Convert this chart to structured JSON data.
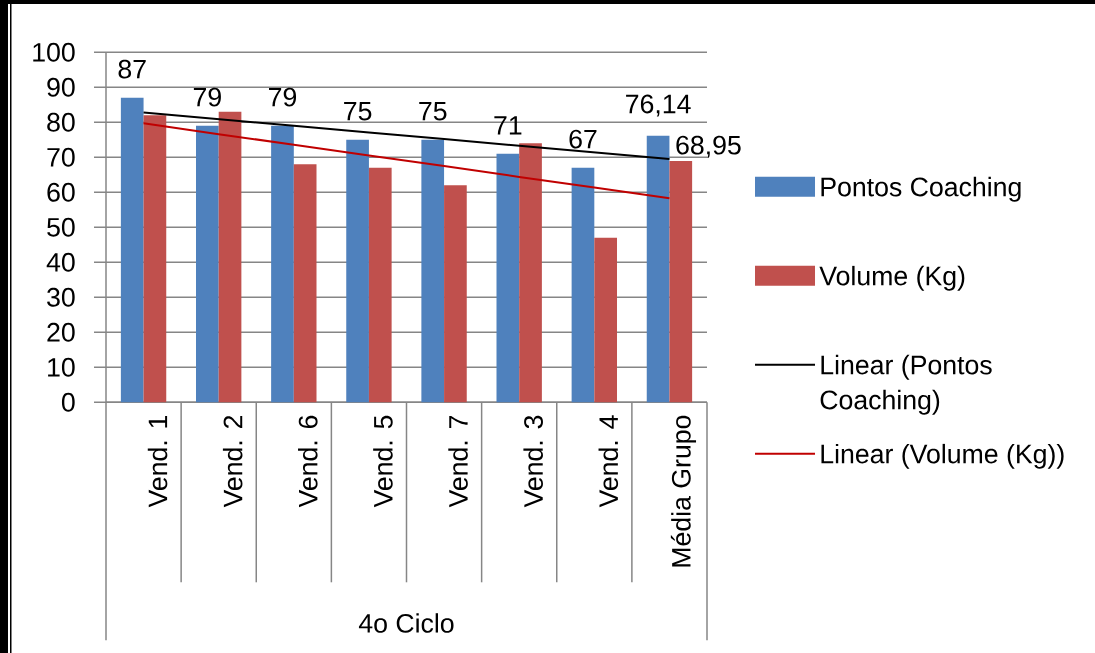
{
  "chart_data": {
    "type": "bar",
    "categories": [
      "Vend. 1",
      "Vend. 2",
      "Vend. 6",
      "Vend. 5",
      "Vend. 7",
      "Vend. 3",
      "Vend. 4",
      "Média Grupo"
    ],
    "series": [
      {
        "name": "Pontos Coaching",
        "color": "#4f81bd",
        "values": [
          87,
          79,
          79,
          75,
          75,
          71,
          67,
          76.14
        ],
        "value_labels": [
          "87",
          "79",
          "79",
          "75",
          "75",
          "71",
          "67",
          "76,14"
        ]
      },
      {
        "name": "Volume (Kg)",
        "color": "#c0504d",
        "values": [
          82,
          83,
          68,
          67,
          62,
          74,
          47,
          68.95
        ],
        "value_labels": [
          null,
          null,
          null,
          null,
          null,
          null,
          null,
          "68,95"
        ]
      },
      {
        "name": "Linear (Pontos Coaching)",
        "type": "line",
        "color": "#000000",
        "values": [
          82.8,
          80.9,
          79.0,
          77.1,
          75.2,
          73.3,
          71.4,
          69.5
        ]
      },
      {
        "name": "Linear (Volume (Kg))",
        "type": "line",
        "color": "#c00000",
        "values": [
          79.7,
          76.6,
          73.6,
          70.5,
          67.5,
          64.4,
          61.4,
          58.3
        ]
      }
    ],
    "ylim": [
      0,
      100
    ],
    "yticks": [
      0,
      10,
      20,
      30,
      40,
      50,
      60,
      70,
      80,
      90,
      100
    ],
    "annotations": [
      "4o Ciclo"
    ],
    "grid": "y",
    "legend": "right"
  }
}
